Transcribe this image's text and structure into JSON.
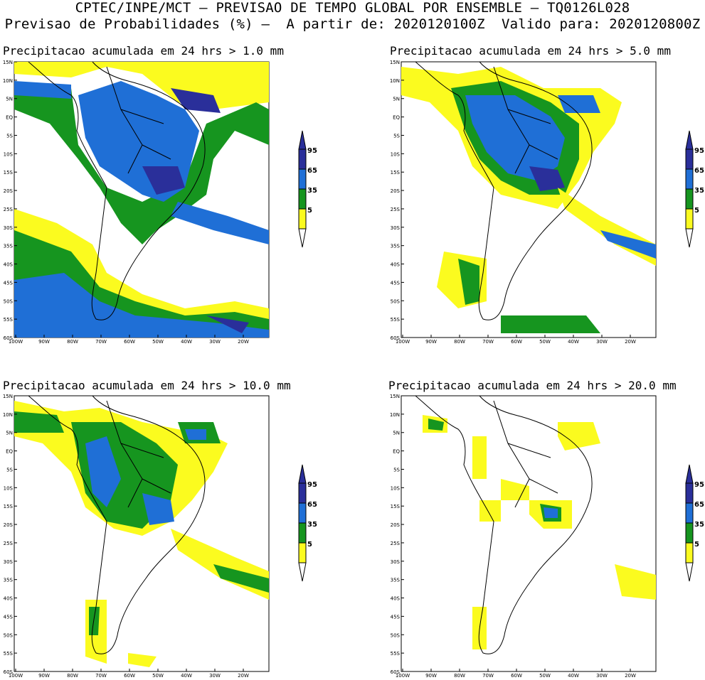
{
  "header": {
    "line1": "CPTEC/INPE/MCT — PREVISAO DE TEMPO GLOBAL POR ENSEMBLE — TQ0126L028",
    "line2": "Previsao de Probabilidades (%) —  A partir de: 2020120100Z  Valido para: 2020120800Z"
  },
  "panels": [
    {
      "title": "Precipitacao acumulada em 24 hrs > 1.0 mm"
    },
    {
      "title": "Precipitacao acumulada em 24 hrs > 5.0 mm"
    },
    {
      "title": "Precipitacao acumulada em 24 hrs > 10.0 mm"
    },
    {
      "title": "Precipitacao acumulada em 24 hrs > 20.0 mm"
    }
  ],
  "axes": {
    "lat_labels": [
      "15N",
      "10N",
      "5N",
      "EQ",
      "5S",
      "10S",
      "15S",
      "20S",
      "25S",
      "30S",
      "35S",
      "40S",
      "45S",
      "50S",
      "55S",
      "60S"
    ],
    "lon_labels": [
      "100W",
      "90W",
      "80W",
      "70W",
      "60W",
      "50W",
      "40W",
      "30W",
      "20W"
    ]
  },
  "legend": {
    "labels": [
      "95",
      "65",
      "35",
      "5"
    ],
    "colors": {
      "c95": "#2a2f9a",
      "c65": "#1f6fd6",
      "c35": "#16951f",
      "c5": "#fbfb1f"
    }
  }
}
